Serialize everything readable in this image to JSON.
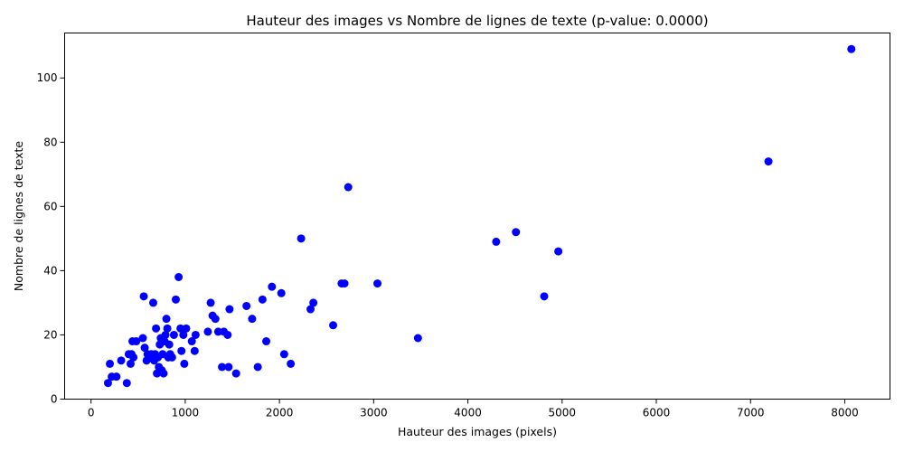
{
  "chart_data": {
    "type": "scatter",
    "title": "Hauteur des images vs Nombre de lignes de texte (p-value: 0.0000)",
    "xlabel": "Hauteur des images (pixels)",
    "ylabel": "Nombre de lignes de texte",
    "xlim": [
      -280,
      8480
    ],
    "ylim": [
      0,
      114
    ],
    "xticks": [
      0,
      1000,
      2000,
      3000,
      4000,
      5000,
      6000,
      7000,
      8000
    ],
    "yticks": [
      0,
      20,
      40,
      60,
      80,
      100
    ],
    "grid": false,
    "legend": "none",
    "point_color": "#0000ff",
    "points": [
      [
        180,
        5
      ],
      [
        200,
        11
      ],
      [
        220,
        7
      ],
      [
        270,
        7
      ],
      [
        320,
        12
      ],
      [
        380,
        5
      ],
      [
        400,
        14
      ],
      [
        420,
        11
      ],
      [
        430,
        14
      ],
      [
        440,
        18
      ],
      [
        450,
        13
      ],
      [
        480,
        18
      ],
      [
        550,
        19
      ],
      [
        560,
        32
      ],
      [
        570,
        16
      ],
      [
        590,
        12
      ],
      [
        600,
        14
      ],
      [
        620,
        13
      ],
      [
        640,
        14
      ],
      [
        660,
        30
      ],
      [
        670,
        12
      ],
      [
        680,
        14
      ],
      [
        690,
        22
      ],
      [
        700,
        8
      ],
      [
        710,
        13
      ],
      [
        720,
        10
      ],
      [
        730,
        17
      ],
      [
        740,
        19
      ],
      [
        750,
        9
      ],
      [
        760,
        14
      ],
      [
        770,
        8
      ],
      [
        780,
        18
      ],
      [
        790,
        20
      ],
      [
        800,
        25
      ],
      [
        810,
        22
      ],
      [
        820,
        13
      ],
      [
        830,
        17
      ],
      [
        840,
        14
      ],
      [
        860,
        13
      ],
      [
        880,
        20
      ],
      [
        900,
        31
      ],
      [
        930,
        38
      ],
      [
        950,
        22
      ],
      [
        960,
        15
      ],
      [
        980,
        20
      ],
      [
        990,
        11
      ],
      [
        1010,
        22
      ],
      [
        1070,
        18
      ],
      [
        1100,
        15
      ],
      [
        1110,
        20
      ],
      [
        1240,
        21
      ],
      [
        1270,
        30
      ],
      [
        1290,
        26
      ],
      [
        1320,
        25
      ],
      [
        1350,
        21
      ],
      [
        1390,
        10
      ],
      [
        1410,
        21
      ],
      [
        1450,
        20
      ],
      [
        1460,
        10
      ],
      [
        1470,
        28
      ],
      [
        1540,
        8
      ],
      [
        1650,
        29
      ],
      [
        1710,
        25
      ],
      [
        1770,
        10
      ],
      [
        1820,
        31
      ],
      [
        1860,
        18
      ],
      [
        1920,
        35
      ],
      [
        2020,
        33
      ],
      [
        2050,
        14
      ],
      [
        2120,
        11
      ],
      [
        2230,
        50
      ],
      [
        2330,
        28
      ],
      [
        2360,
        30
      ],
      [
        2570,
        23
      ],
      [
        2660,
        36
      ],
      [
        2690,
        36
      ],
      [
        2730,
        66
      ],
      [
        3040,
        36
      ],
      [
        3470,
        19
      ],
      [
        4300,
        49
      ],
      [
        4510,
        52
      ],
      [
        4810,
        32
      ],
      [
        4960,
        46
      ],
      [
        7190,
        74
      ],
      [
        8070,
        109
      ]
    ]
  }
}
